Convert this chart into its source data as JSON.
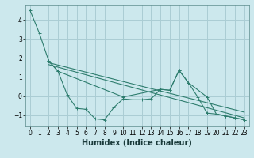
{
  "title": "",
  "xlabel": "Humidex (Indice chaleur)",
  "bg_color": "#cce8ed",
  "grid_color": "#aacdd4",
  "line_color": "#2e7d6e",
  "xlim": [
    -0.5,
    23.5
  ],
  "ylim": [
    -1.6,
    4.8
  ],
  "yticks": [
    -1,
    0,
    1,
    2,
    3,
    4
  ],
  "xticks": [
    0,
    1,
    2,
    3,
    4,
    5,
    6,
    7,
    8,
    9,
    10,
    11,
    12,
    13,
    14,
    15,
    16,
    17,
    18,
    19,
    20,
    21,
    22,
    23
  ],
  "line1_x": [
    0,
    1,
    2,
    3,
    4,
    5,
    6,
    7,
    8,
    9,
    10,
    11,
    12,
    13,
    14,
    15,
    16,
    17,
    18,
    19,
    20,
    21,
    22,
    23
  ],
  "line1_y": [
    4.5,
    3.3,
    1.85,
    1.3,
    0.05,
    -0.65,
    -0.7,
    -1.2,
    -1.25,
    -0.6,
    -0.15,
    -0.2,
    -0.2,
    -0.15,
    0.35,
    0.3,
    1.35,
    0.7,
    -0.05,
    -0.9,
    -0.95,
    -1.05,
    -1.15,
    -1.25
  ],
  "line2_x": [
    2,
    3,
    10,
    14,
    15,
    16,
    17,
    19,
    20,
    21,
    22,
    23
  ],
  "line2_y": [
    1.85,
    1.3,
    -0.05,
    0.35,
    0.3,
    1.35,
    0.7,
    -0.05,
    -0.95,
    -1.05,
    -1.15,
    -1.25
  ],
  "line3_x": [
    2,
    23
  ],
  "line3_y": [
    1.75,
    -0.85
  ],
  "line4_x": [
    2,
    23
  ],
  "line4_y": [
    1.65,
    -1.15
  ],
  "xlabel_fontsize": 7,
  "tick_fontsize": 5.5
}
